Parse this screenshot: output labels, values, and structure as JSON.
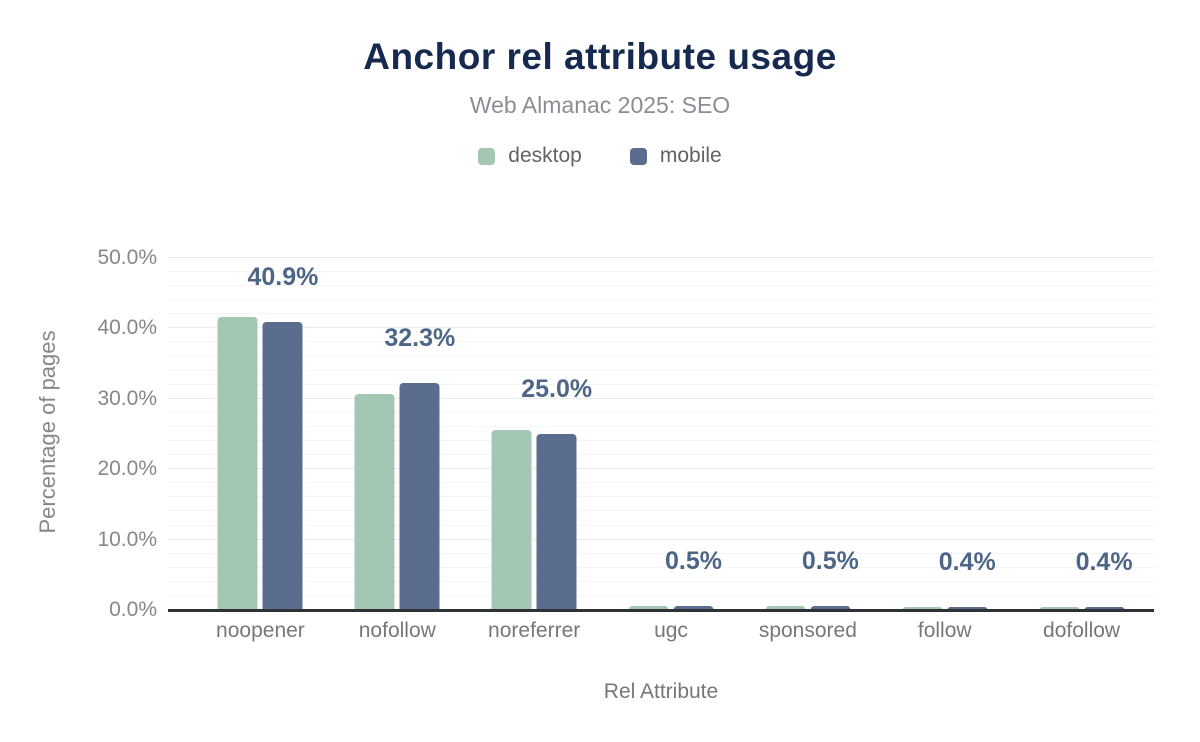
{
  "chart_data": {
    "type": "bar",
    "title": "Anchor rel attribute usage",
    "subtitle": "Web Almanac 2025: SEO",
    "xlabel": "Rel Attribute",
    "ylabel": "Percentage of pages",
    "categories": [
      "noopener",
      "nofollow",
      "noreferrer",
      "ugc",
      "sponsored",
      "follow",
      "dofollow"
    ],
    "series": [
      {
        "name": "desktop",
        "color": "#a3c7b2",
        "values": [
          41.6,
          30.7,
          25.6,
          0.5,
          0.5,
          0.4,
          0.4
        ]
      },
      {
        "name": "mobile",
        "color": "#5a6d8e",
        "values": [
          40.9,
          32.3,
          25.0,
          0.5,
          0.5,
          0.4,
          0.4
        ]
      }
    ],
    "data_labels": [
      "40.9%",
      "32.3%",
      "25.0%",
      "0.5%",
      "0.5%",
      "0.4%",
      "0.4%"
    ],
    "data_label_series": "mobile",
    "ylim": [
      0,
      50
    ],
    "yticks": [
      "0.0%",
      "10.0%",
      "20.0%",
      "30.0%",
      "40.0%",
      "50.0%"
    ],
    "grid": "horizontal minor lines every 2%, major every 10%",
    "legend_position": "top",
    "colors": {
      "title": "#16294e",
      "subtitle": "#8a8e94",
      "data_label": "#4d6586",
      "axis_text": "#85878c",
      "axis_line": "#2e3136",
      "desktop": "#a3c7b2",
      "mobile": "#5a6d8e"
    }
  }
}
